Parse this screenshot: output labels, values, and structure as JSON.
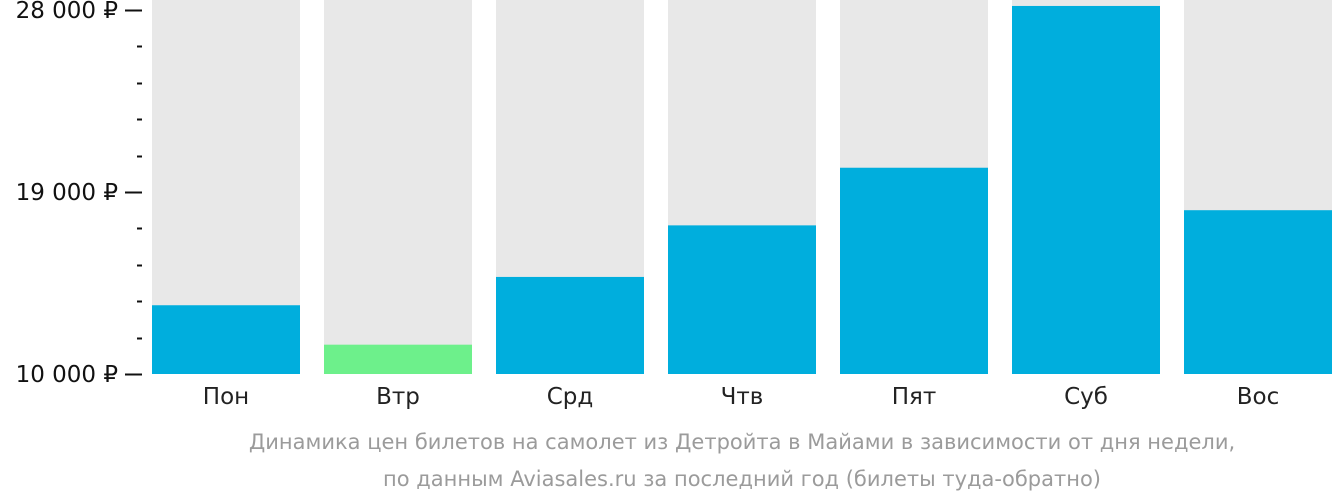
{
  "chart_data": {
    "type": "bar",
    "categories": [
      "Пон",
      "Втр",
      "Срд",
      "Чтв",
      "Пят",
      "Суб",
      "Вос"
    ],
    "values": [
      13400,
      11450,
      14800,
      17350,
      20200,
      28200,
      18100
    ],
    "highlight_index": 1,
    "ylim": [
      10000,
      28000
    ],
    "yticks": [
      {
        "value": 10000,
        "label": "10 000 ₽"
      },
      {
        "value": 19000,
        "label": "19 000 ₽"
      },
      {
        "value": 28000,
        "label": "28 000 ₽"
      }
    ],
    "minor_tick_step": 1800,
    "grid": false,
    "colors": {
      "bar": "#00aedd",
      "highlight": "#6df08b",
      "track": "#e8e8e8"
    }
  },
  "caption": {
    "line1": "Динамика цен билетов на самолет из Детройта в Майами в зависимости от дня недели,",
    "line2": "по данным Aviasales.ru за последний год (билеты туда-обратно)"
  }
}
